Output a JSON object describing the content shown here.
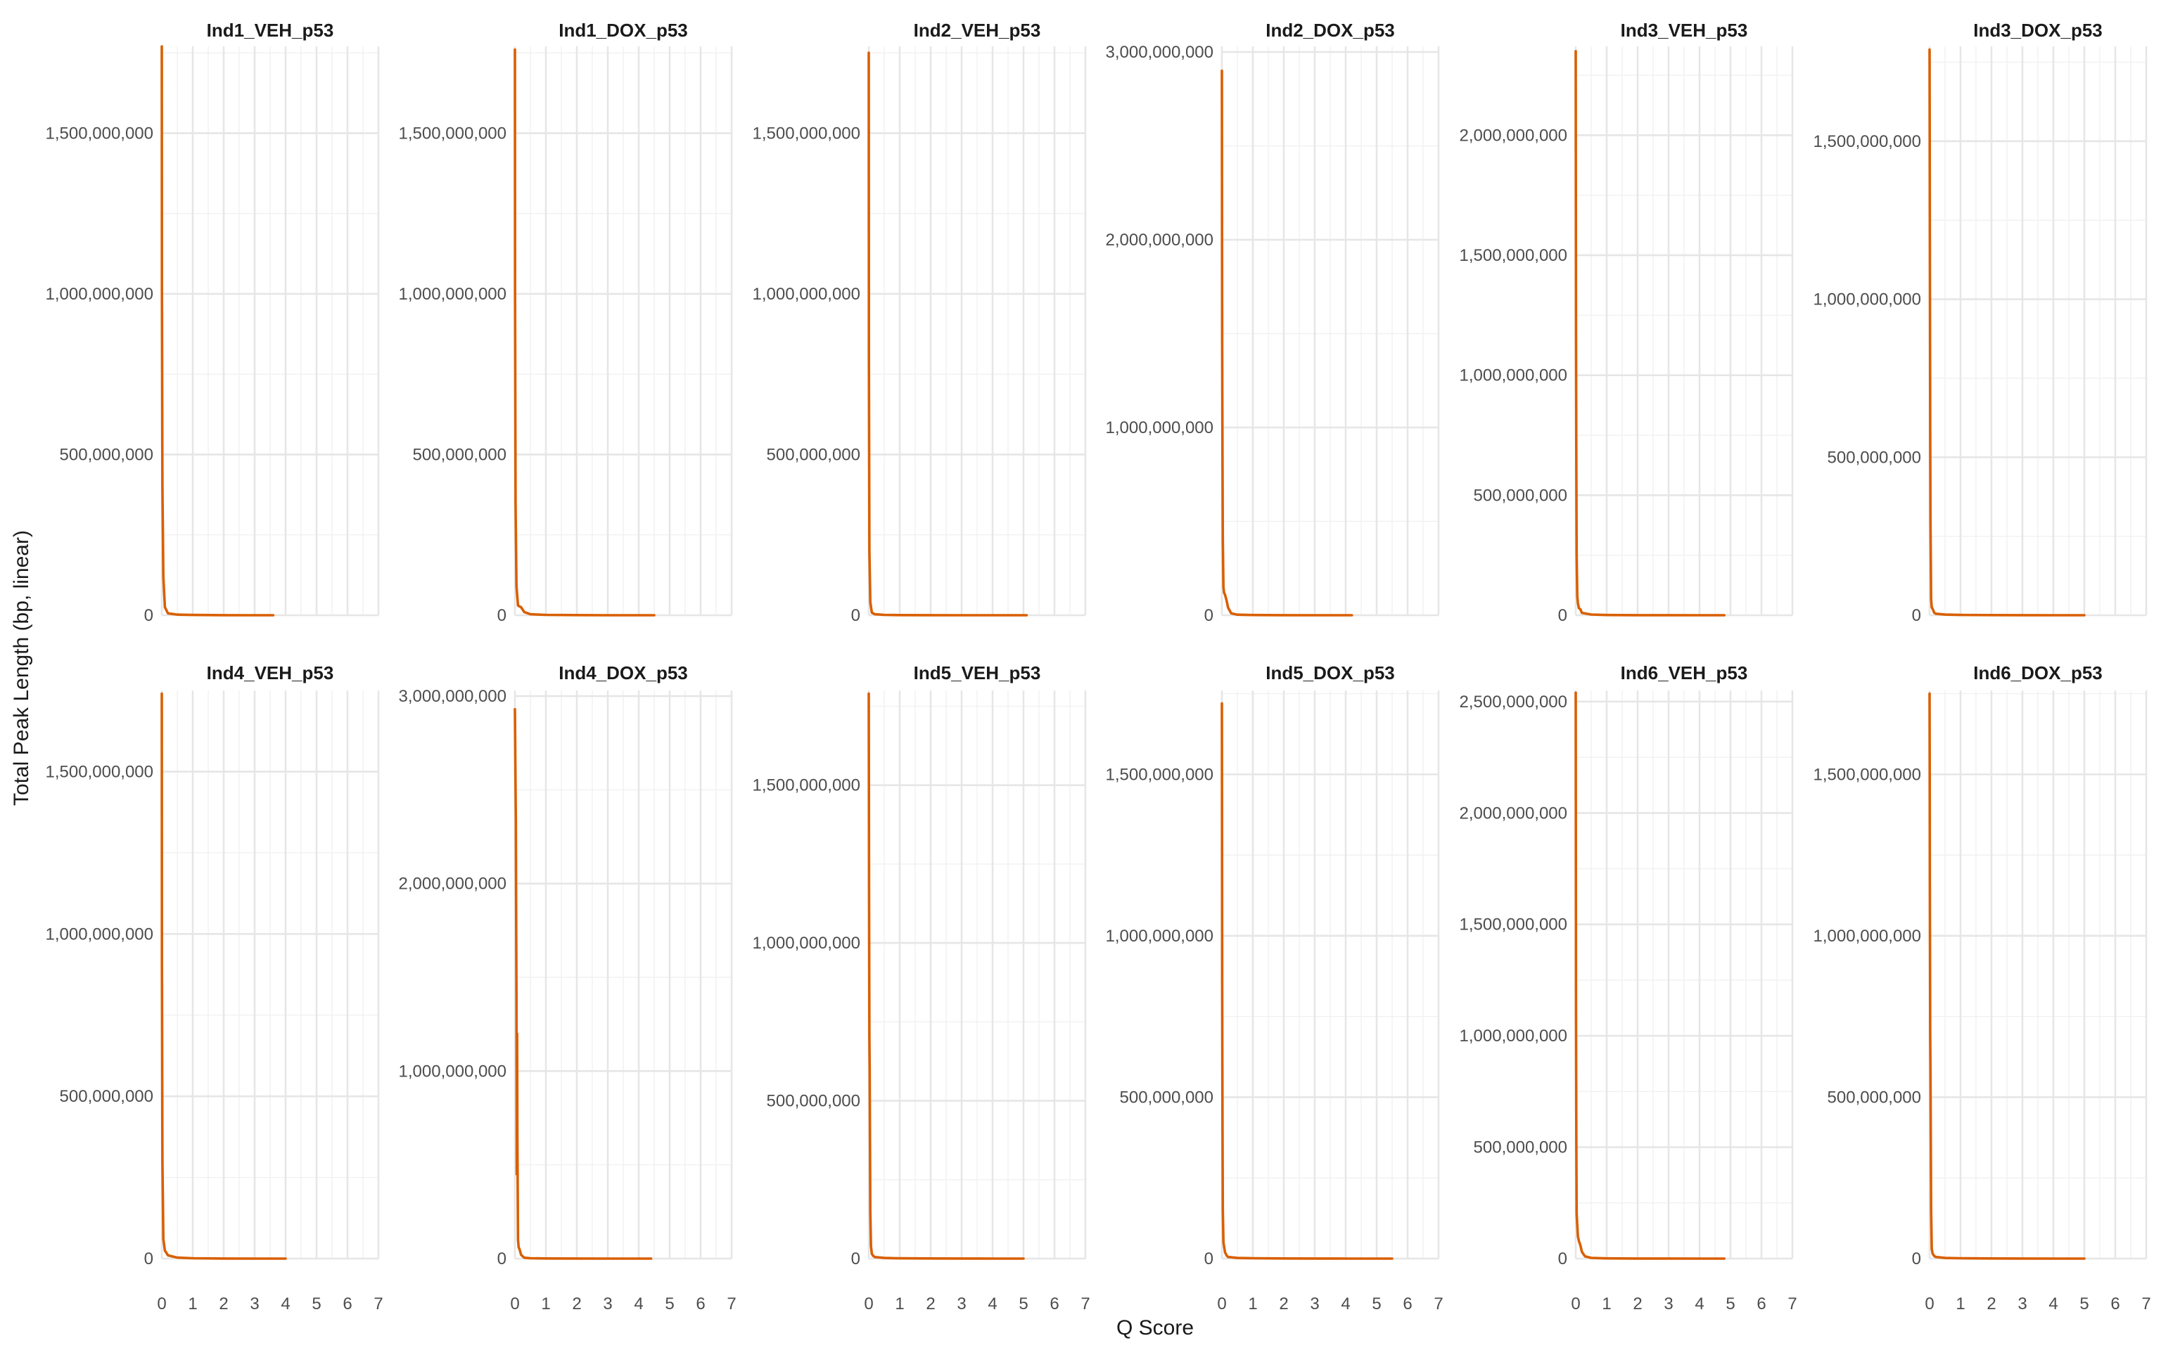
{
  "colors": {
    "line": "#D95F02",
    "grid_major": "#E6E6E6",
    "tick_text": "#4D4D4D"
  },
  "figure": {
    "xlabel": "Q Score",
    "ylabel": "Total Peak Length (bp, linear)"
  },
  "chart_data": [
    {
      "type": "line",
      "title": "Ind1_VEH_p53",
      "xlim": [
        0,
        7
      ],
      "ylim": [
        0,
        1770000000
      ],
      "xticks": [
        0,
        1,
        2,
        3,
        4,
        5,
        6,
        7
      ],
      "yticks": [
        0,
        500000000,
        1000000000,
        1500000000
      ],
      "ytick_labels": [
        "0",
        "500,000,000",
        "1,000,000,000",
        "1,500,000,000"
      ],
      "x": [
        0,
        0.005,
        0.02,
        0.05,
        0.1,
        0.2,
        0.5,
        1,
        2,
        3,
        3.6
      ],
      "y": [
        1770000000,
        1000000000,
        400000000,
        120000000,
        25000000,
        6000000,
        2000000,
        800000,
        300000,
        100000,
        0
      ]
    },
    {
      "type": "line",
      "title": "Ind1_DOX_p53",
      "xlim": [
        0,
        7
      ],
      "ylim": [
        0,
        1770000000
      ],
      "xticks": [
        0,
        1,
        2,
        3,
        4,
        5,
        6,
        7
      ],
      "yticks": [
        0,
        500000000,
        1000000000,
        1500000000
      ],
      "ytick_labels": [
        "0",
        "500,000,000",
        "1,000,000,000",
        "1,500,000,000"
      ],
      "x": [
        0,
        0.005,
        0.02,
        0.05,
        0.1,
        0.2,
        0.3,
        0.5,
        1,
        2,
        3,
        4.5
      ],
      "y": [
        1760000000,
        1000000000,
        350000000,
        90000000,
        30000000,
        25000000,
        10000000,
        3000000,
        1000000,
        400000,
        100000,
        0
      ]
    },
    {
      "type": "line",
      "title": "Ind2_VEH_p53",
      "xlim": [
        0,
        7
      ],
      "ylim": [
        0,
        1770000000
      ],
      "xticks": [
        0,
        1,
        2,
        3,
        4,
        5,
        6,
        7
      ],
      "yticks": [
        0,
        500000000,
        1000000000,
        1500000000
      ],
      "ytick_labels": [
        "0",
        "500,000,000",
        "1,000,000,000",
        "1,500,000,000"
      ],
      "x": [
        0,
        0.005,
        0.02,
        0.05,
        0.1,
        0.2,
        0.5,
        1,
        2,
        3,
        4,
        5.1
      ],
      "y": [
        1750000000,
        800000000,
        200000000,
        40000000,
        8000000,
        3000000,
        1000000,
        500000,
        200000,
        100000,
        50000,
        0
      ]
    },
    {
      "type": "line",
      "title": "Ind2_DOX_p53",
      "xlim": [
        0,
        7
      ],
      "ylim": [
        0,
        3030000000
      ],
      "xticks": [
        0,
        1,
        2,
        3,
        4,
        5,
        6,
        7
      ],
      "yticks": [
        0,
        1000000000,
        2000000000,
        3000000000
      ],
      "ytick_labels": [
        "0",
        "1,000,000,000",
        "2,000,000,000",
        "3,000,000,000"
      ],
      "x": [
        0,
        0.005,
        0.01,
        0.02,
        0.03,
        0.05,
        0.07,
        0.1,
        0.15,
        0.2,
        0.3,
        0.5,
        1,
        2,
        3,
        4.2
      ],
      "y": [
        2900000000,
        2000000000,
        1450000000,
        800000000,
        400000000,
        150000000,
        120000000,
        110000000,
        80000000,
        40000000,
        10000000,
        3000000,
        1000000,
        400000,
        100000,
        0
      ]
    },
    {
      "type": "line",
      "title": "Ind3_VEH_p53",
      "xlim": [
        0,
        7
      ],
      "ylim": [
        0,
        2370000000
      ],
      "xticks": [
        0,
        1,
        2,
        3,
        4,
        5,
        6,
        7
      ],
      "yticks": [
        0,
        500000000,
        1000000000,
        1500000000,
        2000000000
      ],
      "ytick_labels": [
        "0",
        "500,000,000",
        "1,000,000,000",
        "1,500,000,000",
        "2,000,000,000"
      ],
      "x": [
        0,
        0.005,
        0.01,
        0.02,
        0.03,
        0.05,
        0.07,
        0.1,
        0.15,
        0.2,
        0.5,
        1,
        2,
        3,
        4,
        4.8
      ],
      "y": [
        2350000000,
        1700000000,
        1170000000,
        600000000,
        250000000,
        80000000,
        50000000,
        30000000,
        25000000,
        10000000,
        3000000,
        1000000,
        400000,
        200000,
        100000,
        0
      ]
    },
    {
      "type": "line",
      "title": "Ind3_DOX_p53",
      "xlim": [
        0,
        7
      ],
      "ylim": [
        0,
        1800000000
      ],
      "xticks": [
        0,
        1,
        2,
        3,
        4,
        5,
        6,
        7
      ],
      "yticks": [
        0,
        500000000,
        1000000000,
        1500000000
      ],
      "ytick_labels": [
        "0",
        "500,000,000",
        "1,000,000,000",
        "1,500,000,000"
      ],
      "x": [
        0,
        0.005,
        0.01,
        0.02,
        0.03,
        0.05,
        0.07,
        0.1,
        0.15,
        0.2,
        0.5,
        1,
        2,
        3,
        4,
        5
      ],
      "y": [
        1790000000,
        1500000000,
        1200000000,
        600000000,
        300000000,
        50000000,
        25000000,
        20000000,
        8000000,
        5000000,
        2000000,
        1000000,
        400000,
        200000,
        100000,
        0
      ]
    },
    {
      "type": "line",
      "title": "Ind4_VEH_p53",
      "xlim": [
        0,
        7
      ],
      "ylim": [
        0,
        1750000000
      ],
      "xticks": [
        0,
        1,
        2,
        3,
        4,
        5,
        6,
        7
      ],
      "yticks": [
        0,
        500000000,
        1000000000,
        1500000000
      ],
      "ytick_labels": [
        "0",
        "500,000,000",
        "1,000,000,000",
        "1,500,000,000"
      ],
      "x": [
        0,
        0.005,
        0.02,
        0.05,
        0.1,
        0.2,
        0.5,
        1,
        2,
        3,
        4
      ],
      "y": [
        1740000000,
        900000000,
        300000000,
        60000000,
        25000000,
        10000000,
        3000000,
        1000000,
        300000,
        100000,
        0
      ]
    },
    {
      "type": "line",
      "title": "Ind4_DOX_p53",
      "xlim": [
        0,
        7
      ],
      "ylim": [
        0,
        3030000000
      ],
      "xticks": [
        0,
        1,
        2,
        3,
        4,
        5,
        6,
        7
      ],
      "yticks": [
        0,
        1000000000,
        2000000000,
        3000000000
      ],
      "ytick_labels": [
        "0",
        "1,000,000,000",
        "2,000,000,000",
        "3,000,000,000"
      ],
      "x": [
        0,
        0.02,
        0.03,
        0.04,
        0.05,
        0.06,
        0.07,
        0.08,
        0.1,
        0.12,
        0.15,
        0.2,
        0.3,
        0.5,
        1,
        2,
        3,
        4.4
      ],
      "y": [
        2930000000,
        2500000000,
        2350000000,
        1800000000,
        1400000000,
        450000000,
        1200000000,
        640000000,
        100000000,
        60000000,
        50000000,
        20000000,
        5000000,
        2000000,
        800000,
        300000,
        100000,
        0
      ]
    },
    {
      "type": "line",
      "title": "Ind5_VEH_p53",
      "xlim": [
        0,
        7
      ],
      "ylim": [
        0,
        1800000000
      ],
      "xticks": [
        0,
        1,
        2,
        3,
        4,
        5,
        6,
        7
      ],
      "yticks": [
        0,
        500000000,
        1000000000,
        1500000000
      ],
      "ytick_labels": [
        "0",
        "500,000,000",
        "1,000,000,000",
        "1,500,000,000"
      ],
      "x": [
        0,
        0.005,
        0.01,
        0.02,
        0.03,
        0.05,
        0.07,
        0.1,
        0.15,
        0.2,
        0.5,
        1,
        2,
        3,
        4,
        5
      ],
      "y": [
        1790000000,
        1500000000,
        1180000000,
        700000000,
        600000000,
        150000000,
        40000000,
        15000000,
        8000000,
        5000000,
        2000000,
        1000000,
        400000,
        200000,
        100000,
        0
      ]
    },
    {
      "type": "line",
      "title": "Ind5_DOX_p53",
      "xlim": [
        0,
        7
      ],
      "ylim": [
        0,
        1760000000
      ],
      "xticks": [
        0,
        1,
        2,
        3,
        4,
        5,
        6,
        7
      ],
      "yticks": [
        0,
        500000000,
        1000000000,
        1500000000
      ],
      "ytick_labels": [
        "0",
        "500,000,000",
        "1,000,000,000",
        "1,500,000,000"
      ],
      "x": [
        0,
        0.005,
        0.01,
        0.02,
        0.03,
        0.05,
        0.1,
        0.15,
        0.2,
        0.5,
        1,
        2,
        3,
        4,
        5.5
      ],
      "y": [
        1720000000,
        1300000000,
        850000000,
        400000000,
        150000000,
        50000000,
        20000000,
        10000000,
        5000000,
        2000000,
        1000000,
        400000,
        200000,
        100000,
        0
      ]
    },
    {
      "type": "line",
      "title": "Ind6_VEH_p53",
      "xlim": [
        0,
        7
      ],
      "ylim": [
        0,
        2550000000
      ],
      "xticks": [
        0,
        1,
        2,
        3,
        4,
        5,
        6,
        7
      ],
      "yticks": [
        0,
        500000000,
        1000000000,
        1500000000,
        2000000000,
        2500000000
      ],
      "ytick_labels": [
        "0",
        "500,000,000",
        "1,000,000,000",
        "1,500,000,000",
        "2,000,000,000",
        "2,500,000,000"
      ],
      "x": [
        0,
        0.005,
        0.01,
        0.02,
        0.03,
        0.05,
        0.07,
        0.1,
        0.15,
        0.2,
        0.3,
        0.5,
        1,
        2,
        3,
        4,
        4.8
      ],
      "y": [
        2540000000,
        1800000000,
        1100000000,
        500000000,
        200000000,
        150000000,
        100000000,
        80000000,
        60000000,
        30000000,
        10000000,
        3000000,
        1000000,
        400000,
        200000,
        100000,
        0
      ]
    },
    {
      "type": "line",
      "title": "Ind6_DOX_p53",
      "xlim": [
        0,
        7
      ],
      "ylim": [
        0,
        1760000000
      ],
      "xticks": [
        0,
        1,
        2,
        3,
        4,
        5,
        6,
        7
      ],
      "yticks": [
        0,
        500000000,
        1000000000,
        1500000000
      ],
      "ytick_labels": [
        "0",
        "500,000,000",
        "1,000,000,000",
        "1,500,000,000"
      ],
      "x": [
        0,
        0.005,
        0.01,
        0.02,
        0.03,
        0.05,
        0.07,
        0.1,
        0.15,
        0.2,
        0.5,
        1,
        2,
        3,
        4,
        5
      ],
      "y": [
        1750000000,
        1500000000,
        1160000000,
        700000000,
        580000000,
        150000000,
        30000000,
        15000000,
        8000000,
        5000000,
        2000000,
        1000000,
        400000,
        200000,
        100000,
        0
      ]
    }
  ]
}
